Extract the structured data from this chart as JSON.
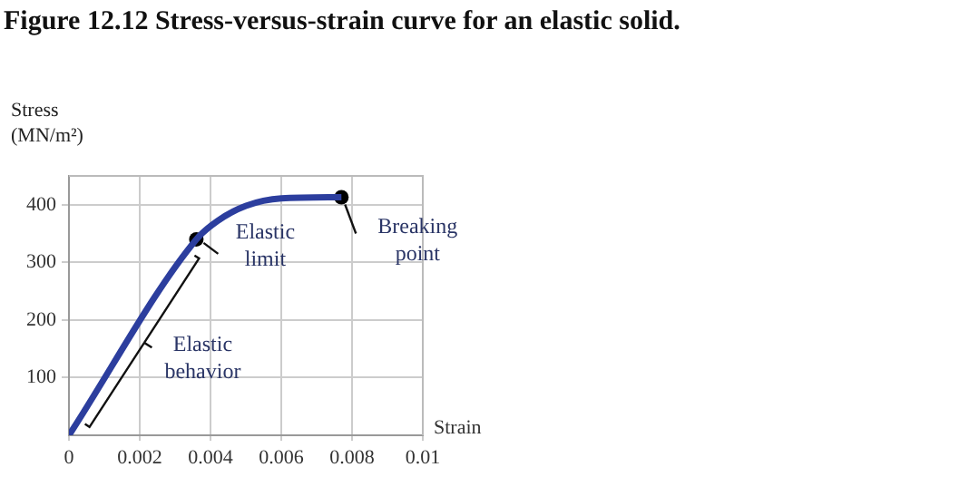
{
  "chart_data": {
    "type": "line",
    "title": "Figure 12.12 Stress-versus-strain curve for an elastic solid.",
    "xlabel": "Strain",
    "ylabel": "Stress (MN/m²)",
    "xlim": [
      0,
      0.01
    ],
    "xticks": [
      0,
      0.002,
      0.004,
      0.006,
      0.008,
      0.01
    ],
    "ylim": [
      0,
      450
    ],
    "yticks": [
      100,
      200,
      300,
      400
    ],
    "grid": true,
    "legend": false,
    "series": [
      {
        "x": [
          0,
          0.0036,
          0.0042,
          0.005,
          0.006,
          0.0077
        ],
        "values": [
          0,
          340,
          372,
          398,
          411,
          413
        ],
        "color": "#2c3e9e",
        "marker": "none"
      },
      {
        "type": "scatter",
        "x": [
          0.0036,
          0.0077
        ],
        "values": [
          340,
          413
        ],
        "color": "#000000",
        "marker": "circle"
      }
    ],
    "annotations": [
      {
        "text": "Elastic limit",
        "x": 0.0036,
        "y": 340
      },
      {
        "text": "Breaking point",
        "x": 0.0077,
        "y": 413
      },
      {
        "text": "Elastic behavior",
        "x": 0.0018,
        "y": 170
      }
    ]
  }
}
